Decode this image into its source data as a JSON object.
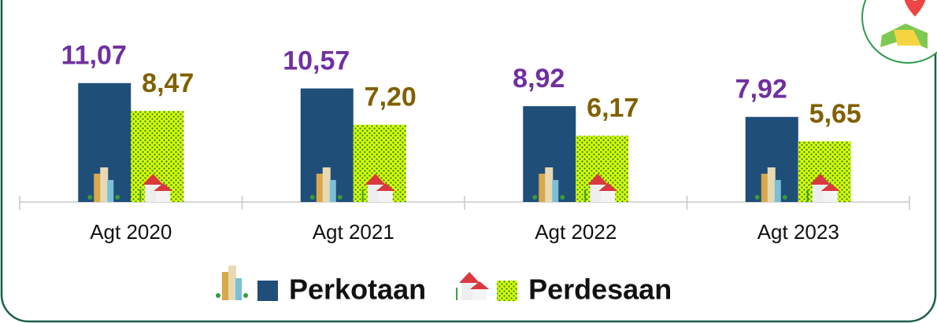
{
  "chart_data": {
    "type": "bar",
    "categories": [
      "Agt 2020",
      "Agt 2021",
      "Agt 2022",
      "Agt 2023"
    ],
    "series": [
      {
        "name": "Perkotaan",
        "color": "#1f4e79",
        "label_color": "#7030a0",
        "values": [
          11.07,
          10.57,
          8.92,
          7.92
        ],
        "value_labels": [
          "11,07",
          "10,57",
          "8,92",
          "7,92"
        ]
      },
      {
        "name": "Perdesaan",
        "color": "#ddff00",
        "label_color": "#806000",
        "values": [
          8.47,
          7.2,
          6.17,
          5.65
        ],
        "value_labels": [
          "8,47",
          "7,20",
          "6,17",
          "5,65"
        ]
      }
    ],
    "ylim": [
      0,
      12
    ]
  }
}
